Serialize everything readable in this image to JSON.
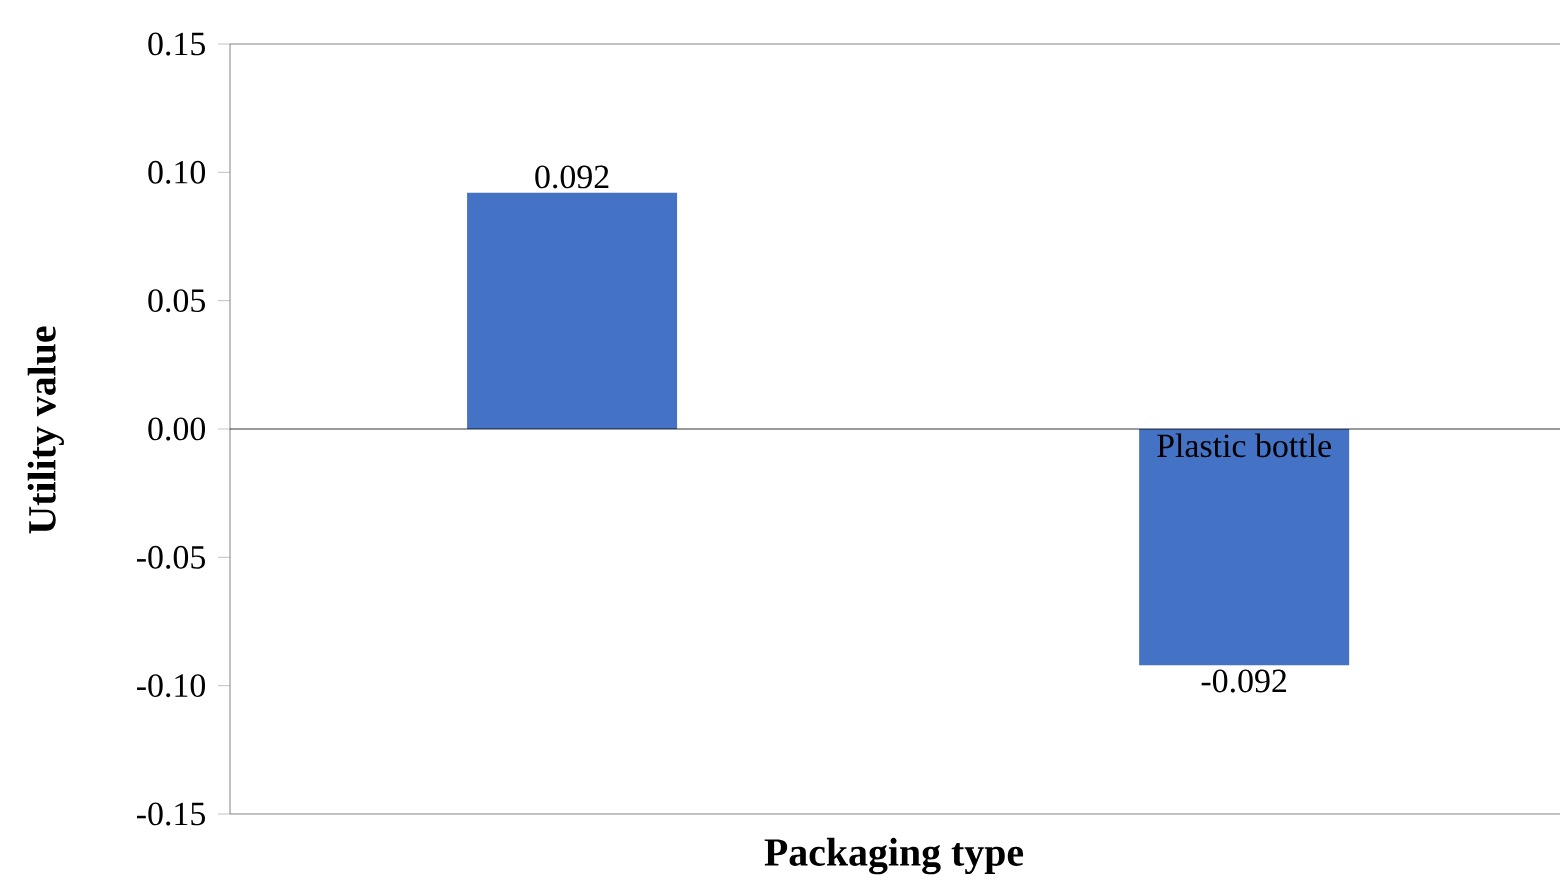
{
  "chart_data": {
    "type": "bar",
    "xlabel": "Packaging type",
    "ylabel": "Utility value",
    "categories": [
      null,
      "Plastic bottle"
    ],
    "values": [
      0.092,
      -0.092
    ],
    "value_labels": [
      "0.092",
      "-0.092"
    ],
    "color": "#4472c4",
    "ylim": [
      -0.15,
      0.15
    ],
    "yticks": [
      {
        "value": -0.15,
        "label": "-0.15"
      },
      {
        "value": -0.1,
        "label": "-0.10"
      },
      {
        "value": -0.05,
        "label": "-0.05"
      },
      {
        "value": 0,
        "label": "0.00"
      },
      {
        "value": 0.05,
        "label": "0.05"
      },
      {
        "value": 0.1,
        "label": "0.10"
      },
      {
        "value": 0.15,
        "label": "0.15"
      }
    ]
  }
}
